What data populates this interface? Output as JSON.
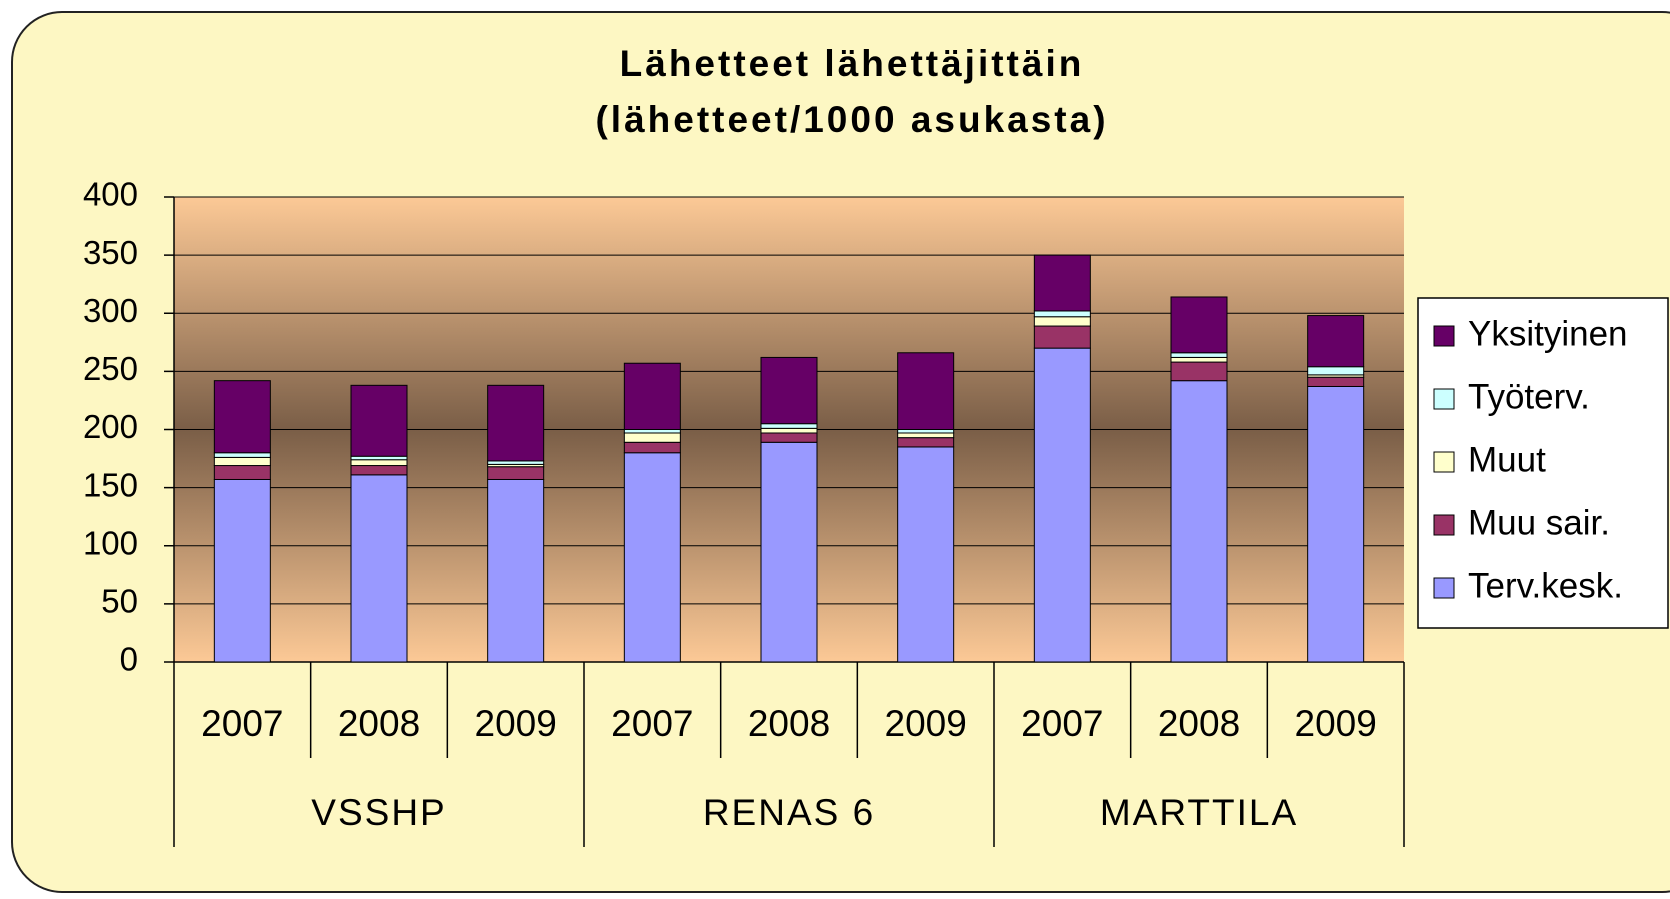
{
  "chart_data": {
    "type": "stacked_bar",
    "title": [
      "Lähetteet lähettäjittäin",
      "(lähetteet/1000 asukasta)"
    ],
    "categories": [
      "2007",
      "2008",
      "2009",
      "2007",
      "2008",
      "2009",
      "2007",
      "2008",
      "2009"
    ],
    "groups": [
      "VSSHP",
      "RENAS 6",
      "MARTTILA"
    ],
    "series": [
      {
        "name": "Terv.kesk.",
        "color": "#9999ff",
        "values": [
          157,
          161,
          157,
          180,
          189,
          185,
          270,
          242,
          237
        ]
      },
      {
        "name": "Muu sair.",
        "color": "#993366",
        "values": [
          12,
          8,
          11,
          9,
          8,
          8,
          19,
          16,
          8
        ]
      },
      {
        "name": "Muut",
        "color": "#ffffcc",
        "values": [
          7,
          5,
          2,
          8,
          4,
          4,
          8,
          4,
          2
        ]
      },
      {
        "name": "Työterv.",
        "color": "#ccffff",
        "values": [
          4,
          3,
          3,
          3,
          4,
          3,
          5,
          4,
          7
        ]
      },
      {
        "name": "Yksityinen",
        "color": "#660066",
        "values": [
          62,
          61,
          65,
          57,
          57,
          66,
          48,
          48,
          44
        ]
      }
    ],
    "ylim": [
      0,
      400
    ],
    "yticks": [
      0,
      50,
      100,
      150,
      200,
      250,
      300,
      350,
      400
    ],
    "grid": true,
    "legend": "right"
  }
}
